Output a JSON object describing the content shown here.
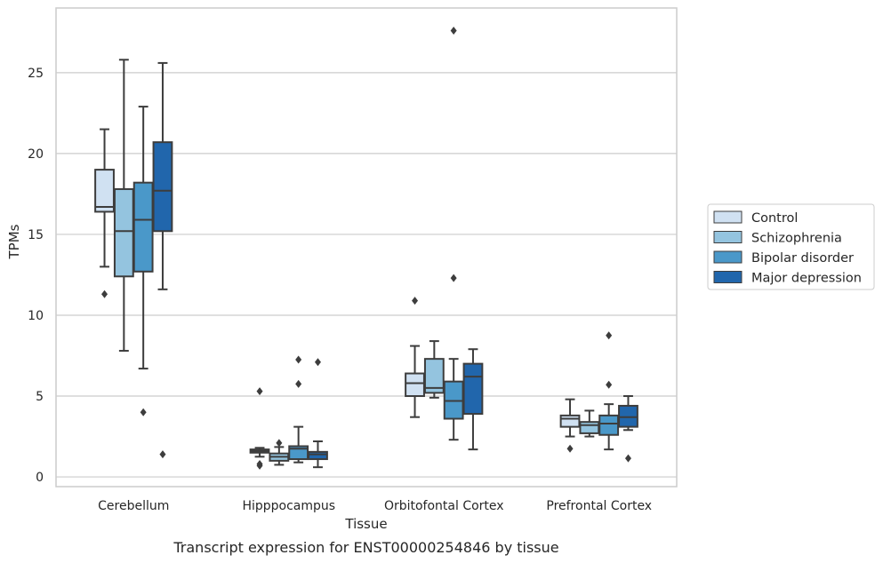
{
  "chart_data": {
    "type": "box",
    "title": "",
    "caption": "Transcript expression for ENST00000254846 by tissue",
    "xlabel": "Tissue",
    "ylabel": "TPMs",
    "ylim": [
      -0.6,
      29
    ],
    "yticks": [
      0,
      5,
      10,
      15,
      20,
      25
    ],
    "grid": "horizontal",
    "legend_position": "right",
    "categories": [
      "Cerebellum",
      "Hipppocampus",
      "Orbitofontal Cortex",
      "Prefrontal Cortex"
    ],
    "series": [
      {
        "name": "Control",
        "color": "#d0e1f2",
        "boxes": [
          {
            "whisker_low": 13.0,
            "q1": 16.4,
            "median": 16.7,
            "q3": 19.0,
            "whisker_high": 21.5,
            "outliers": [
              11.3
            ]
          },
          {
            "whisker_low": 1.25,
            "q1": 1.5,
            "median": 1.6,
            "q3": 1.7,
            "whisker_high": 1.8,
            "outliers": [
              5.3,
              0.8,
              0.7
            ]
          },
          {
            "whisker_low": 3.7,
            "q1": 5.0,
            "median": 5.8,
            "q3": 6.4,
            "whisker_high": 8.1,
            "outliers": [
              10.9
            ]
          },
          {
            "whisker_low": 2.5,
            "q1": 3.1,
            "median": 3.6,
            "q3": 3.8,
            "whisker_high": 4.8,
            "outliers": [
              1.75
            ]
          }
        ]
      },
      {
        "name": "Schizophrenia",
        "color": "#94c4df",
        "boxes": [
          {
            "whisker_low": 7.8,
            "q1": 12.4,
            "median": 15.2,
            "q3": 17.8,
            "whisker_high": 25.8,
            "outliers": []
          },
          {
            "whisker_low": 0.75,
            "q1": 1.0,
            "median": 1.25,
            "q3": 1.45,
            "whisker_high": 1.85,
            "outliers": [
              2.1
            ]
          },
          {
            "whisker_low": 4.9,
            "q1": 5.2,
            "median": 5.5,
            "q3": 7.3,
            "whisker_high": 8.4,
            "outliers": []
          },
          {
            "whisker_low": 2.5,
            "q1": 2.7,
            "median": 3.2,
            "q3": 3.4,
            "whisker_high": 4.1,
            "outliers": []
          }
        ]
      },
      {
        "name": "Bipolar disorder",
        "color": "#4a98c9",
        "boxes": [
          {
            "whisker_low": 6.7,
            "q1": 12.7,
            "median": 15.9,
            "q3": 18.2,
            "whisker_high": 22.9,
            "outliers": [
              4.0
            ]
          },
          {
            "whisker_low": 0.9,
            "q1": 1.1,
            "median": 1.75,
            "q3": 1.9,
            "whisker_high": 3.1,
            "outliers": [
              7.25,
              5.75
            ]
          },
          {
            "whisker_low": 2.3,
            "q1": 3.6,
            "median": 4.7,
            "q3": 5.9,
            "whisker_high": 7.3,
            "outliers": [
              27.6,
              12.3
            ]
          },
          {
            "whisker_low": 1.7,
            "q1": 2.6,
            "median": 3.3,
            "q3": 3.8,
            "whisker_high": 4.5,
            "outliers": [
              8.75,
              5.7
            ]
          }
        ]
      },
      {
        "name": "Major depression",
        "color": "#2166ac",
        "boxes": [
          {
            "whisker_low": 11.6,
            "q1": 15.2,
            "median": 17.7,
            "q3": 20.7,
            "whisker_high": 25.6,
            "outliers": [
              1.4
            ]
          },
          {
            "whisker_low": 0.6,
            "q1": 1.1,
            "median": 1.4,
            "q3": 1.55,
            "whisker_high": 2.2,
            "outliers": [
              7.1
            ]
          },
          {
            "whisker_low": 1.7,
            "q1": 3.9,
            "median": 6.2,
            "q3": 7.0,
            "whisker_high": 7.9,
            "outliers": []
          },
          {
            "whisker_low": 2.9,
            "q1": 3.1,
            "median": 3.7,
            "q3": 4.4,
            "whisker_high": 5.0,
            "outliers": [
              1.15
            ]
          }
        ]
      }
    ]
  }
}
